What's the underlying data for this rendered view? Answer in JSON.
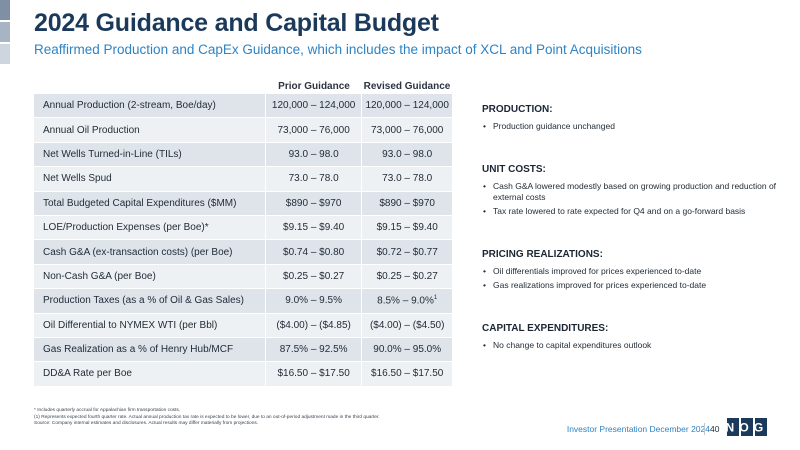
{
  "header": {
    "title": "2024 Guidance and Capital Budget",
    "subtitle": "Reaffirmed Production and CapEx Guidance, which includes the impact of XCL and Point Acquisitions"
  },
  "table": {
    "headers": [
      "Prior Guidance",
      "Revised Guidance"
    ],
    "rows": [
      {
        "metric": "Annual Production (2-stream, Boe/day)",
        "prior": "120,000 – 124,000",
        "revised": "120,000 – 124,000"
      },
      {
        "metric": "Annual Oil Production",
        "prior": "73,000 – 76,000",
        "revised": "73,000 – 76,000"
      },
      {
        "metric": "Net Wells Turned-in-Line (TILs)",
        "prior": "93.0 – 98.0",
        "revised": "93.0 – 98.0"
      },
      {
        "metric": "Net Wells Spud",
        "prior": "73.0 – 78.0",
        "revised": "73.0 – 78.0"
      },
      {
        "metric": "Total Budgeted Capital Expenditures ($MM)",
        "prior": "$890 – $970",
        "revised": "$890 – $970"
      },
      {
        "metric": "LOE/Production Expenses (per Boe)*",
        "prior": "$9.15 – $9.40",
        "revised": "$9.15 – $9.40"
      },
      {
        "metric": "Cash G&A (ex-transaction costs) (per Boe)",
        "prior": "$0.74 – $0.80",
        "revised": "$0.72 – $0.77"
      },
      {
        "metric": "Non-Cash G&A (per Boe)",
        "prior": "$0.25 – $0.27",
        "revised": "$0.25 – $0.27"
      },
      {
        "metric": "Production Taxes (as a % of Oil & Gas Sales)",
        "prior": "9.0% – 9.5%",
        "revised": "8.5% – 9.0%",
        "revised_sup": "1"
      },
      {
        "metric": "Oil Differential to NYMEX WTI (per Bbl)",
        "prior": "($4.00) – ($4.85)",
        "revised": "($4.00) – ($4.50)"
      },
      {
        "metric": "Gas Realization as a % of Henry Hub/MCF",
        "prior": "87.5% – 92.5%",
        "revised": "90.0% – 95.0%"
      },
      {
        "metric": "DD&A Rate per Boe",
        "prior": "$16.50 – $17.50",
        "revised": "$16.50 – $17.50"
      }
    ]
  },
  "sidebar": [
    {
      "heading": "PRODUCTION:",
      "bullets": [
        "Production guidance unchanged"
      ]
    },
    {
      "heading": "UNIT COSTS:",
      "bullets": [
        "Cash G&A lowered modestly based on growing production and reduction of external costs",
        "Tax rate lowered to rate expected for Q4 and on a go-forward basis"
      ]
    },
    {
      "heading": "PRICING REALIZATIONS:",
      "bullets": [
        "Oil differentials improved for prices experienced to-date",
        "Gas realizations improved for prices experienced to-date"
      ]
    },
    {
      "heading": "CAPITAL EXPENDITURES:",
      "bullets": [
        "No change to capital expenditures outlook"
      ]
    }
  ],
  "footnotes": [
    "* Includes quarterly accrual for Appalachian firm transportation costs.",
    "(1)  Represents expected fourth quarter rate. Actual annual production tax rate is expected to be lower, due to an out-of-period adjustment made in the third quarter.",
    "Source: Company internal estimates and disclosures. Actual results may differ materially from projections."
  ],
  "footer": {
    "label": "Investor Presentation December 2024",
    "page": "40",
    "logo_text": "NOG"
  },
  "colors": {
    "title": "#1b3a5b",
    "accent": "#2e83c3",
    "row_dark": "#dfe4ea",
    "row_light": "#eef1f4",
    "logo": "#1b3a5b"
  }
}
